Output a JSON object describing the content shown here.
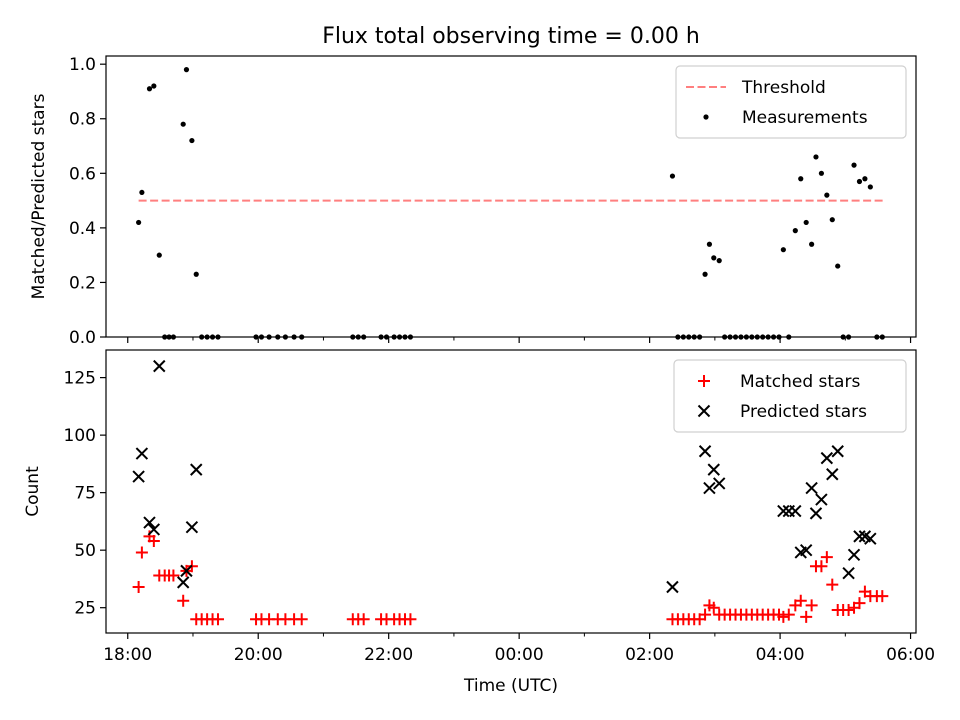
{
  "figure": {
    "title": "Flux total observing time = 0.00 h",
    "xlabel": "Time (UTC)"
  },
  "chart_data": [
    {
      "type": "scatter",
      "ylabel": "Matched/Predicted stars",
      "xlim": [
        "17:40",
        "06:05"
      ],
      "ylim": [
        0,
        1.03
      ],
      "xticks": [
        "18:00",
        "20:00",
        "22:00",
        "00:00",
        "02:00",
        "04:00",
        "06:00"
      ],
      "yticks": [
        "0.0",
        "0.2",
        "0.4",
        "0.6",
        "0.8",
        "1.0"
      ],
      "legend": "top-right",
      "threshold": {
        "name": "Threshold",
        "y": 0.5,
        "x_from": "18:10",
        "x_to": "05:35",
        "color": "#ff7f7f",
        "style": "dashed"
      },
      "series": [
        {
          "name": "Measurements",
          "color": "#000000",
          "marker": "dot",
          "points": [
            [
              "18:10",
              0.42
            ],
            [
              "18:13",
              0.53
            ],
            [
              "18:20",
              0.91
            ],
            [
              "18:24",
              0.92
            ],
            [
              "18:29",
              0.3
            ],
            [
              "18:34",
              0.0
            ],
            [
              "18:38",
              0.0
            ],
            [
              "18:42",
              0.0
            ],
            [
              "18:51",
              0.78
            ],
            [
              "18:54",
              0.98
            ],
            [
              "18:59",
              0.72
            ],
            [
              "19:03",
              0.23
            ],
            [
              "19:08",
              0.0
            ],
            [
              "19:13",
              0.0
            ],
            [
              "19:18",
              0.0
            ],
            [
              "19:23",
              0.0
            ],
            [
              "19:58",
              0.0
            ],
            [
              "20:03",
              0.0
            ],
            [
              "20:10",
              0.0
            ],
            [
              "20:18",
              0.0
            ],
            [
              "20:25",
              0.0
            ],
            [
              "20:33",
              0.0
            ],
            [
              "20:40",
              0.0
            ],
            [
              "21:27",
              0.0
            ],
            [
              "21:32",
              0.0
            ],
            [
              "21:37",
              0.0
            ],
            [
              "21:53",
              0.0
            ],
            [
              "21:58",
              0.0
            ],
            [
              "22:05",
              0.0
            ],
            [
              "22:10",
              0.0
            ],
            [
              "22:15",
              0.0
            ],
            [
              "22:20",
              0.0
            ],
            [
              "02:21",
              0.59
            ],
            [
              "02:26",
              0.0
            ],
            [
              "02:31",
              0.0
            ],
            [
              "02:36",
              0.0
            ],
            [
              "02:41",
              0.0
            ],
            [
              "02:46",
              0.0
            ],
            [
              "02:51",
              0.23
            ],
            [
              "02:55",
              0.34
            ],
            [
              "02:59",
              0.29
            ],
            [
              "03:04",
              0.28
            ],
            [
              "03:09",
              0.0
            ],
            [
              "03:14",
              0.0
            ],
            [
              "03:19",
              0.0
            ],
            [
              "03:24",
              0.0
            ],
            [
              "03:29",
              0.0
            ],
            [
              "03:34",
              0.0
            ],
            [
              "03:39",
              0.0
            ],
            [
              "03:44",
              0.0
            ],
            [
              "03:49",
              0.0
            ],
            [
              "03:54",
              0.0
            ],
            [
              "03:59",
              0.0
            ],
            [
              "04:03",
              0.32
            ],
            [
              "04:08",
              0.0
            ],
            [
              "04:14",
              0.39
            ],
            [
              "04:19",
              0.58
            ],
            [
              "04:24",
              0.42
            ],
            [
              "04:29",
              0.34
            ],
            [
              "04:33",
              0.66
            ],
            [
              "04:38",
              0.6
            ],
            [
              "04:43",
              0.52
            ],
            [
              "04:48",
              0.43
            ],
            [
              "04:53",
              0.26
            ],
            [
              "04:58",
              0.0
            ],
            [
              "05:03",
              0.0
            ],
            [
              "05:08",
              0.63
            ],
            [
              "05:13",
              0.57
            ],
            [
              "05:18",
              0.58
            ],
            [
              "05:23",
              0.55
            ],
            [
              "05:29",
              0.0
            ],
            [
              "05:34",
              0.0
            ]
          ]
        }
      ]
    },
    {
      "type": "scatter",
      "ylabel": "Count",
      "xlim": [
        "17:40",
        "06:05"
      ],
      "ylim": [
        14,
        137
      ],
      "xticks": [
        "18:00",
        "20:00",
        "22:00",
        "00:00",
        "02:00",
        "04:00",
        "06:00"
      ],
      "yticks": [
        "25",
        "50",
        "75",
        "100",
        "125"
      ],
      "legend": "top-right",
      "series": [
        {
          "name": "Matched stars",
          "color": "#ff0000",
          "marker": "plus",
          "points": [
            [
              "18:10",
              34
            ],
            [
              "18:13",
              49
            ],
            [
              "18:20",
              56
            ],
            [
              "18:24",
              54
            ],
            [
              "18:29",
              39
            ],
            [
              "18:34",
              39
            ],
            [
              "18:38",
              39
            ],
            [
              "18:42",
              39
            ],
            [
              "18:51",
              28
            ],
            [
              "18:54",
              41
            ],
            [
              "18:59",
              43
            ],
            [
              "19:03",
              20
            ],
            [
              "19:08",
              20
            ],
            [
              "19:13",
              20
            ],
            [
              "19:18",
              20
            ],
            [
              "19:23",
              20
            ],
            [
              "19:58",
              20
            ],
            [
              "20:03",
              20
            ],
            [
              "20:10",
              20
            ],
            [
              "20:18",
              20
            ],
            [
              "20:25",
              20
            ],
            [
              "20:33",
              20
            ],
            [
              "20:40",
              20
            ],
            [
              "21:27",
              20
            ],
            [
              "21:32",
              20
            ],
            [
              "21:37",
              20
            ],
            [
              "21:53",
              20
            ],
            [
              "21:58",
              20
            ],
            [
              "22:05",
              20
            ],
            [
              "22:10",
              20
            ],
            [
              "22:15",
              20
            ],
            [
              "22:20",
              20
            ],
            [
              "02:21",
              20
            ],
            [
              "02:26",
              20
            ],
            [
              "02:31",
              20
            ],
            [
              "02:36",
              20
            ],
            [
              "02:41",
              20
            ],
            [
              "02:46",
              20
            ],
            [
              "02:51",
              22
            ],
            [
              "02:55",
              26
            ],
            [
              "02:59",
              25
            ],
            [
              "03:04",
              22
            ],
            [
              "03:09",
              22
            ],
            [
              "03:14",
              22
            ],
            [
              "03:19",
              22
            ],
            [
              "03:24",
              22
            ],
            [
              "03:29",
              22
            ],
            [
              "03:34",
              22
            ],
            [
              "03:39",
              22
            ],
            [
              "03:44",
              22
            ],
            [
              "03:49",
              22
            ],
            [
              "03:54",
              22
            ],
            [
              "03:59",
              22
            ],
            [
              "04:03",
              21
            ],
            [
              "04:08",
              22
            ],
            [
              "04:14",
              26
            ],
            [
              "04:19",
              28
            ],
            [
              "04:24",
              21
            ],
            [
              "04:29",
              26
            ],
            [
              "04:33",
              43
            ],
            [
              "04:38",
              43
            ],
            [
              "04:43",
              47
            ],
            [
              "04:48",
              35
            ],
            [
              "04:53",
              24
            ],
            [
              "04:58",
              24
            ],
            [
              "05:03",
              24
            ],
            [
              "05:08",
              25
            ],
            [
              "05:13",
              27
            ],
            [
              "05:18",
              32
            ],
            [
              "05:23",
              30
            ],
            [
              "05:29",
              30
            ],
            [
              "05:34",
              30
            ]
          ]
        },
        {
          "name": "Predicted stars",
          "color": "#000000",
          "marker": "x",
          "points": [
            [
              "18:10",
              82
            ],
            [
              "18:13",
              92
            ],
            [
              "18:20",
              62
            ],
            [
              "18:24",
              59
            ],
            [
              "18:29",
              130
            ],
            [
              "18:51",
              36
            ],
            [
              "18:54",
              41
            ],
            [
              "18:59",
              60
            ],
            [
              "19:03",
              85
            ],
            [
              "02:21",
              34
            ],
            [
              "02:51",
              93
            ],
            [
              "02:55",
              77
            ],
            [
              "02:59",
              85
            ],
            [
              "03:04",
              79
            ],
            [
              "04:03",
              67
            ],
            [
              "04:08",
              67
            ],
            [
              "04:14",
              67
            ],
            [
              "04:19",
              49
            ],
            [
              "04:24",
              50
            ],
            [
              "04:29",
              77
            ],
            [
              "04:33",
              66
            ],
            [
              "04:38",
              72
            ],
            [
              "04:43",
              90
            ],
            [
              "04:48",
              83
            ],
            [
              "04:53",
              93
            ],
            [
              "05:03",
              40
            ],
            [
              "05:08",
              48
            ],
            [
              "05:13",
              56
            ],
            [
              "05:18",
              56
            ],
            [
              "05:23",
              55
            ]
          ]
        }
      ]
    }
  ]
}
